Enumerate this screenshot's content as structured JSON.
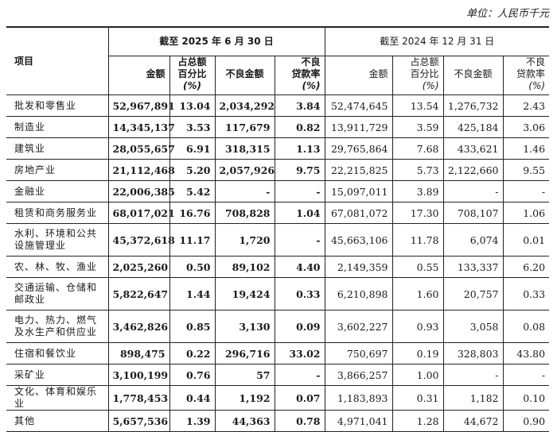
{
  "unit": "单位：人民币千元",
  "header": {
    "item": "项目",
    "period_2025": "截至 2025 年 6 月 30 日",
    "period_2024": "截至 2024 年 12 月 31 日",
    "col_amount": "金额",
    "col_share_l1": "占总额",
    "col_share_l2": "百分比",
    "col_pct": "(%)",
    "col_npl": "不良金额",
    "col_rate_l1": "不良",
    "col_rate_l2": "贷款率"
  },
  "rows": [
    {
      "name": "批发和零售业",
      "a25": "52,967,891",
      "s25": "13.04",
      "n25": "2,034,292",
      "r25": "3.84",
      "a24": "52,474,645",
      "s24": "13.54",
      "n24": "1,276,732",
      "r24": "2.43"
    },
    {
      "name": "制造业",
      "a25": "14,345,137",
      "s25": "3.53",
      "n25": "117,679",
      "r25": "0.82",
      "a24": "13,911,729",
      "s24": "3.59",
      "n24": "425,184",
      "r24": "3.06"
    },
    {
      "name": "建筑业",
      "a25": "28,055,657",
      "s25": "6.91",
      "n25": "318,315",
      "r25": "1.13",
      "a24": "29,765,864",
      "s24": "7.68",
      "n24": "433,621",
      "r24": "1.46"
    },
    {
      "name": "房地产业",
      "a25": "21,112,468",
      "s25": "5.20",
      "n25": "2,057,926",
      "r25": "9.75",
      "a24": "22,215,825",
      "s24": "5.73",
      "n24": "2,122,660",
      "r24": "9.55"
    },
    {
      "name": "金融业",
      "a25": "22,006,385",
      "s25": "5.42",
      "n25": "-",
      "r25": "-",
      "a24": "15,097,011",
      "s24": "3.89",
      "n24": "-",
      "r24": "-"
    },
    {
      "name": "租赁和商务服务业",
      "a25": "68,017,021",
      "s25": "16.76",
      "n25": "708,828",
      "r25": "1.04",
      "a24": "67,081,072",
      "s24": "17.30",
      "n24": "708,107",
      "r24": "1.06"
    },
    {
      "name": "水利、环境和公共设施管理业",
      "a25": "45,372,618",
      "s25": "11.17",
      "n25": "1,720",
      "r25": "-",
      "a24": "45,663,106",
      "s24": "11.78",
      "n24": "6,074",
      "r24": "0.01",
      "tall": true
    },
    {
      "name": "农、林、牧、渔业",
      "a25": "2,025,260",
      "s25": "0.50",
      "n25": "89,102",
      "r25": "4.40",
      "a24": "2,149,359",
      "s24": "0.55",
      "n24": "133,337",
      "r24": "6.20"
    },
    {
      "name": "交通运输、仓储和邮政业",
      "a25": "5,822,647",
      "s25": "1.44",
      "n25": "19,424",
      "r25": "0.33",
      "a24": "6,210,898",
      "s24": "1.60",
      "n24": "20,757",
      "r24": "0.33",
      "tall": true
    },
    {
      "name": "电力、热力、燃气及水生产和供应业",
      "a25": "3,462,826",
      "s25": "0.85",
      "n25": "3,130",
      "r25": "0.09",
      "a24": "3,602,227",
      "s24": "0.93",
      "n24": "3,058",
      "r24": "0.08",
      "tall": true
    },
    {
      "name": "住宿和餐饮业",
      "a25": "898,475",
      "s25": "0.22",
      "n25": "296,716",
      "r25": "33.02",
      "a24": "750,697",
      "s24": "0.19",
      "n24": "328,803",
      "r24": "43.80"
    },
    {
      "name": "采矿业",
      "a25": "3,100,199",
      "s25": "0.76",
      "n25": "57",
      "r25": "-",
      "a24": "3,866,257",
      "s24": "1.00",
      "n24": "-",
      "r24": "-"
    },
    {
      "name": "文化、体育和娱乐业",
      "a25": "1,778,453",
      "s25": "0.44",
      "n25": "1,192",
      "r25": "0.07",
      "a24": "1,183,893",
      "s24": "0.31",
      "n24": "1,182",
      "r24": "0.10"
    },
    {
      "name": "其他",
      "a25": "5,657,536",
      "s25": "1.39",
      "n25": "44,363",
      "r25": "0.78",
      "a24": "4,971,041",
      "s24": "1.28",
      "n24": "44,672",
      "r24": "0.90"
    }
  ]
}
